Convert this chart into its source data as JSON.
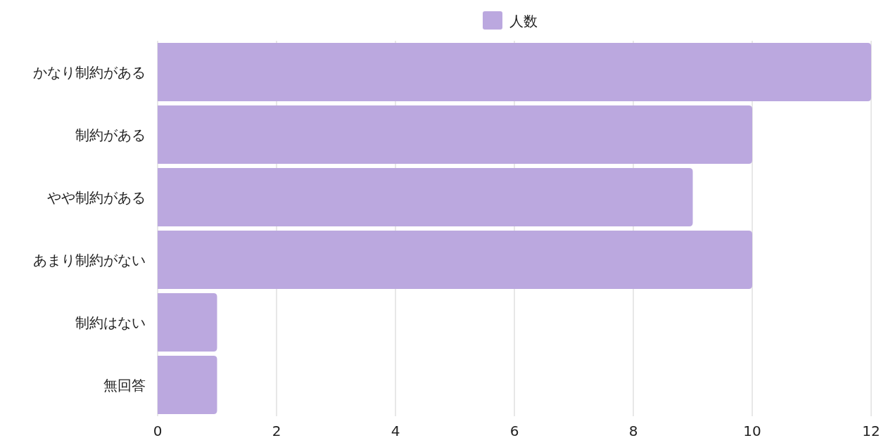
{
  "chart_data": {
    "type": "bar",
    "orientation": "horizontal",
    "categories": [
      "かなり制約がある",
      "制約がある",
      "やや制約がある",
      "あまり制約がない",
      "制約はない",
      "無回答"
    ],
    "series": [
      {
        "name": "人数",
        "color": "#bba8df",
        "values": [
          12,
          10,
          9,
          10,
          1,
          1
        ]
      }
    ],
    "xlim": [
      0,
      12
    ],
    "xticks": [
      0,
      2,
      4,
      6,
      8,
      10,
      12
    ],
    "grid": "x",
    "legend": "top"
  }
}
